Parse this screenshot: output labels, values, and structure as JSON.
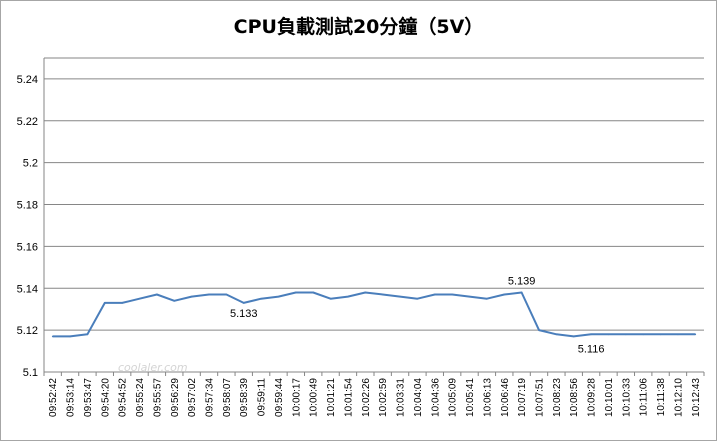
{
  "chart_data": {
    "type": "line",
    "title": "CPU負載測試20分鐘（5V）",
    "xlabel": "",
    "ylabel": "",
    "ylim": [
      5.1,
      5.25
    ],
    "yticks": [
      "5.1",
      "5.12",
      "5.14",
      "5.16",
      "5.18",
      "5.2",
      "5.22",
      "5.24"
    ],
    "grid": "horizontal",
    "legend": "none",
    "line_color": "#4a7ebb",
    "categories": [
      "09:52:42",
      "09:53:14",
      "09:53:47",
      "09:54:20",
      "09:54:52",
      "09:55:24",
      "09:55:57",
      "09:56:29",
      "09:57:02",
      "09:57:34",
      "09:58:07",
      "09:58:39",
      "09:59:11",
      "09:59:44",
      "10:00:17",
      "10:00:49",
      "10:01:21",
      "10:01:54",
      "10:02:26",
      "10:02:59",
      "10:03:31",
      "10:04:04",
      "10:04:36",
      "10:05:09",
      "10:05:41",
      "10:06:13",
      "10:06:46",
      "10:07:19",
      "10:07:51",
      "10:08:23",
      "10:08:56",
      "10:09:28",
      "10:10:01",
      "10:10:33",
      "10:11:06",
      "10:11:38",
      "10:12:10",
      "10:12:43"
    ],
    "series": [
      {
        "values": [
          5.117,
          5.117,
          5.118,
          5.133,
          5.133,
          5.135,
          5.137,
          5.134,
          5.136,
          5.137,
          5.137,
          5.133,
          5.135,
          5.136,
          5.138,
          5.138,
          5.135,
          5.136,
          5.138,
          5.137,
          5.136,
          5.135,
          5.137,
          5.137,
          5.136,
          5.135,
          5.137,
          5.138,
          5.12,
          5.118,
          5.117,
          5.118,
          5.118,
          5.118,
          5.118,
          5.118,
          5.118,
          5.118
        ]
      }
    ],
    "annotations": [
      {
        "label": "5.133",
        "x": "09:58:39",
        "y": 5.133
      },
      {
        "label": "5.139",
        "x": "10:07:19",
        "y": 5.139
      },
      {
        "label": "5.116",
        "x": "10:09:28",
        "y": 5.116
      }
    ]
  },
  "watermark": "coolaler.com"
}
